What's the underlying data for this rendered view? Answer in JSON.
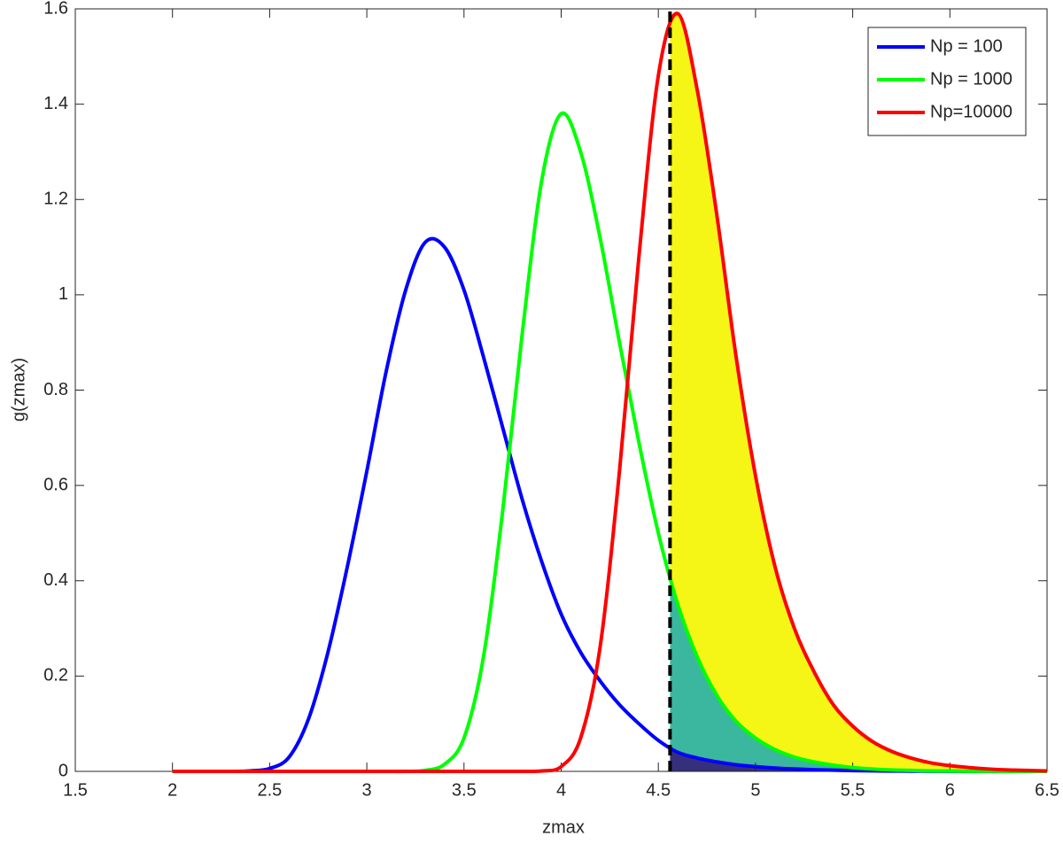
{
  "chart_data": {
    "type": "line",
    "xlabel": "zmax",
    "ylabel": "g(zmax)",
    "x": [
      2.0,
      2.1,
      2.2,
      2.3,
      2.4,
      2.5,
      2.6,
      2.7,
      2.8,
      2.9,
      3.0,
      3.1,
      3.2,
      3.3,
      3.4,
      3.5,
      3.6,
      3.7,
      3.8,
      3.9,
      4.0,
      4.1,
      4.2,
      4.3,
      4.4,
      4.5,
      4.6,
      4.7,
      4.8,
      4.9,
      5.0,
      5.1,
      5.2,
      5.3,
      5.4,
      5.5,
      5.6,
      5.7,
      5.8,
      5.9,
      6.0,
      6.1,
      6.2,
      6.3,
      6.4,
      6.5
    ],
    "series": [
      {
        "name": "Np = 100",
        "color": "#0000ff",
        "values": [
          0,
          0,
          0,
          0,
          0.001,
          0.006,
          0.03,
          0.11,
          0.25,
          0.43,
          0.63,
          0.84,
          1.01,
          1.11,
          1.1,
          1.01,
          0.87,
          0.72,
          0.57,
          0.44,
          0.33,
          0.25,
          0.19,
          0.14,
          0.1,
          0.065,
          0.04,
          0.028,
          0.02,
          0.014,
          0.01,
          0.007,
          0.005,
          0.0035,
          0.0025,
          0.0017,
          0.0012,
          0.0008,
          0.0005,
          0.0003,
          0.0002,
          0.0001,
          0,
          0,
          0,
          0
        ]
      },
      {
        "name": "Np = 1000",
        "color": "#00ff00",
        "values": [
          0,
          0,
          0,
          0,
          0,
          0,
          0,
          0,
          0,
          0,
          0,
          0,
          0,
          0.002,
          0.015,
          0.07,
          0.24,
          0.55,
          0.92,
          1.24,
          1.38,
          1.3,
          1.12,
          0.9,
          0.69,
          0.5,
          0.35,
          0.24,
          0.16,
          0.105,
          0.07,
          0.046,
          0.03,
          0.02,
          0.013,
          0.008,
          0.005,
          0.003,
          0.002,
          0.001,
          0.0006,
          0.0003,
          0.0002,
          0.0001,
          0,
          0
        ]
      },
      {
        "name": "Np=10000",
        "color": "#ff0000",
        "values": [
          0,
          0,
          0,
          0,
          0,
          0,
          0,
          0,
          0,
          0,
          0,
          0,
          0,
          0,
          0,
          0,
          0,
          0,
          0,
          0.001,
          0.01,
          0.07,
          0.26,
          0.63,
          1.08,
          1.46,
          1.59,
          1.43,
          1.17,
          0.87,
          0.62,
          0.43,
          0.3,
          0.21,
          0.14,
          0.095,
          0.063,
          0.042,
          0.028,
          0.018,
          0.012,
          0.008,
          0.005,
          0.003,
          0.002,
          0.001
        ]
      }
    ],
    "threshold": 4.56,
    "fill_colors": [
      "#35307a",
      "#3cb79f",
      "#f5f516"
    ],
    "xlim": [
      1.5,
      6.5
    ],
    "xticks": [
      1.5,
      2,
      2.5,
      3,
      3.5,
      4,
      4.5,
      5,
      5.5,
      6,
      6.5
    ],
    "ylim": [
      0,
      1.6
    ],
    "yticks": [
      0,
      0.2,
      0.4,
      0.6,
      0.8,
      1,
      1.2,
      1.4,
      1.6
    ],
    "grid": false,
    "legend": "upper right"
  }
}
